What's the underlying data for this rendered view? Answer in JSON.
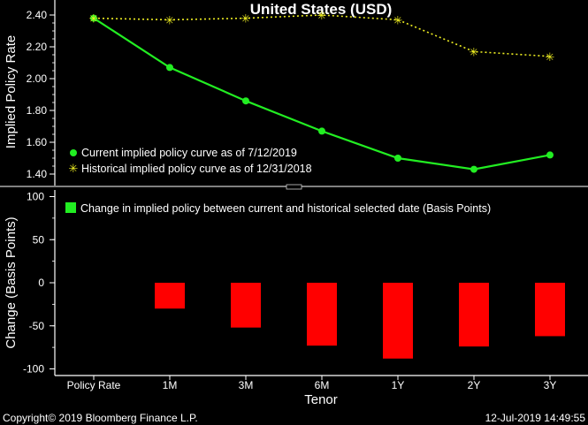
{
  "footer": {
    "copyright": "Copyright© 2019 Bloomberg Finance L.P.",
    "timestamp": "12-Jul-2019 14:49:55"
  },
  "chart_data": [
    {
      "type": "line",
      "title": "United States (USD)",
      "ylabel": "Implied Policy Rate",
      "categories": [
        "Policy Rate",
        "1M",
        "3M",
        "6M",
        "1Y",
        "2Y",
        "3Y"
      ],
      "ylim": [
        1.35,
        2.45
      ],
      "yticks": [
        1.4,
        1.6,
        1.8,
        2.0,
        2.2,
        2.4
      ],
      "ytick_labels": [
        "1.40",
        "1.60",
        "1.80",
        "2.00",
        "2.20",
        "2.40"
      ],
      "legend_position": "bottom-left",
      "series": [
        {
          "name": "Current implied policy curve as of 7/12/2019",
          "color": "#22ee22",
          "marker": "circle",
          "style": "solid",
          "values": [
            2.38,
            2.07,
            1.86,
            1.67,
            1.5,
            1.43,
            1.52
          ]
        },
        {
          "name": "Historical implied policy curve as of 12/31/2018",
          "color": "#eeee22",
          "marker": "star",
          "style": "dotted",
          "values": [
            2.38,
            2.37,
            2.38,
            2.4,
            2.37,
            2.17,
            2.14
          ]
        }
      ]
    },
    {
      "type": "bar",
      "xlabel": "Tenor",
      "ylabel": "Change (Basis Points)",
      "categories": [
        "Policy Rate",
        "1M",
        "3M",
        "6M",
        "1Y",
        "2Y",
        "3Y"
      ],
      "ylim": [
        -105,
        105
      ],
      "yticks": [
        -100,
        -50,
        0,
        50,
        100
      ],
      "ytick_labels": [
        "-100",
        "-50",
        "0",
        "50",
        "100"
      ],
      "legend_position": "top-left",
      "series": [
        {
          "name": "Change in implied policy between current and historical selected date (Basis Points)",
          "color": "#ff0000",
          "legend_color": "#22ee22",
          "values": [
            0,
            -30,
            -52,
            -73,
            -88,
            -74,
            -62
          ]
        }
      ]
    }
  ]
}
